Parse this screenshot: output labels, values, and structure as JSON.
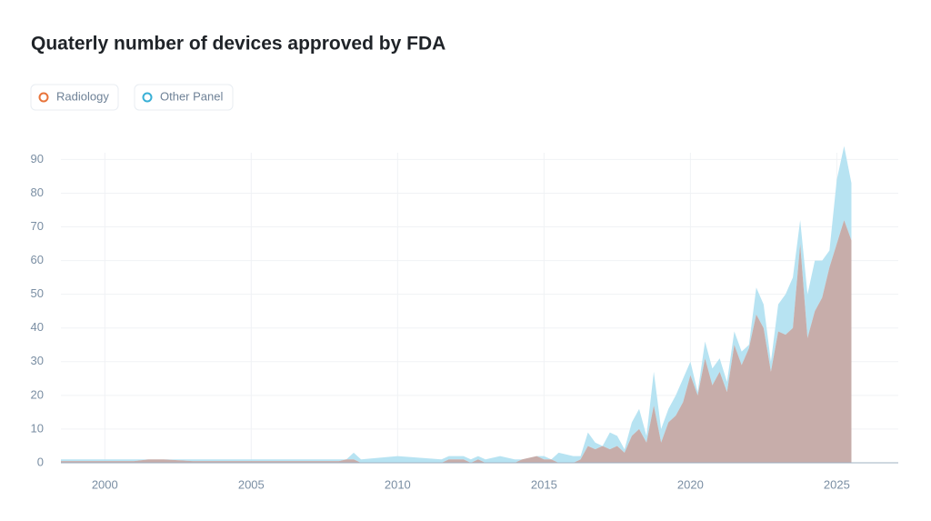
{
  "chart_data": {
    "type": "area",
    "stacked": true,
    "title": "Quaterly number of devices approved by FDA",
    "x": [
      1998.5,
      2000,
      2001,
      2001.5,
      2002,
      2003,
      2005,
      2008,
      2008.25,
      2008.5,
      2008.75,
      2010,
      2011.5,
      2011.75,
      2012.25,
      2012.5,
      2012.75,
      2013,
      2013.5,
      2014,
      2014.25,
      2014.75,
      2015,
      2015.25,
      2015.5,
      2016,
      2016.25,
      2016.5,
      2016.75,
      2017,
      2017.25,
      2017.5,
      2017.75,
      2018,
      2018.25,
      2018.5,
      2018.75,
      2019,
      2019.25,
      2019.5,
      2019.75,
      2020,
      2020.25,
      2020.5,
      2020.75,
      2021,
      2021.25,
      2021.5,
      2021.75,
      2022,
      2022.25,
      2022.5,
      2022.75,
      2023,
      2023.25,
      2023.5,
      2023.75,
      2024,
      2024.25,
      2024.5,
      2024.75,
      2025,
      2025.25,
      2025.5
    ],
    "series": [
      {
        "name": "Radiology",
        "color": "#e8743b",
        "fill": "#c4a9a5",
        "values": [
          0.5,
          0.5,
          0.5,
          1,
          1,
          0.5,
          0.5,
          0.5,
          1,
          1,
          0,
          0,
          0,
          1,
          1,
          0,
          1,
          0,
          0,
          0,
          1,
          2,
          1,
          1,
          0,
          0,
          1,
          5,
          4,
          5,
          4,
          5,
          3,
          8,
          10,
          6,
          17,
          6,
          12,
          14,
          18,
          26,
          20,
          31,
          23,
          27,
          21,
          35,
          29,
          34,
          44,
          40,
          27,
          39,
          38,
          40,
          65,
          37,
          45,
          49,
          58,
          65,
          72,
          66
        ]
      },
      {
        "name": "Other Panel",
        "color": "#3ab0d6",
        "fill": "#b3e2f1",
        "values": [
          0.5,
          0.5,
          0.5,
          0,
          0,
          0.5,
          0.5,
          0.5,
          0,
          2,
          1,
          2,
          1,
          1,
          1,
          1,
          1,
          1,
          2,
          1,
          0,
          0,
          1,
          0,
          3,
          2,
          1,
          4,
          2,
          0,
          5,
          3,
          1,
          4,
          6,
          2,
          10,
          4,
          4,
          6,
          7,
          4,
          1,
          5,
          5,
          4,
          3,
          4,
          4,
          1,
          8,
          7,
          3,
          8,
          12,
          15,
          7,
          13,
          15,
          11,
          5,
          19,
          22,
          17
        ]
      }
    ],
    "xlim": [
      1998.5,
      2027.1
    ],
    "xticks": [
      2000,
      2005,
      2010,
      2015,
      2020,
      2025
    ],
    "ylim": [
      0,
      92
    ],
    "yticks": [
      0,
      10,
      20,
      30,
      40,
      50,
      60,
      70,
      80,
      90
    ],
    "grid": true
  }
}
